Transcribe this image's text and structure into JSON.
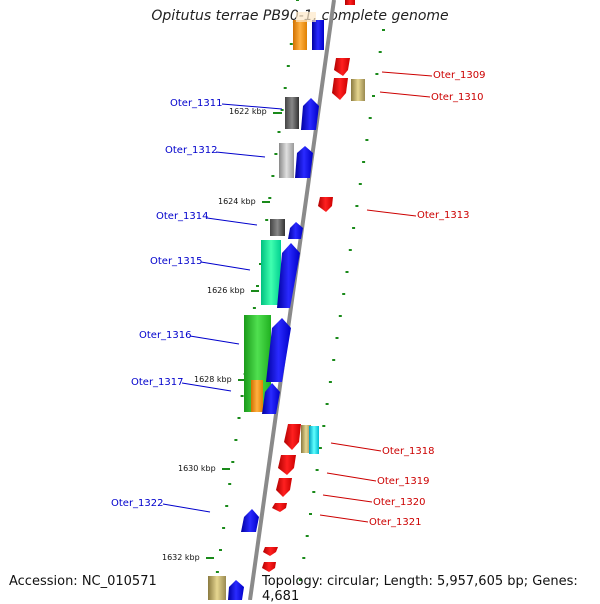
{
  "title": "Opitutus terrae PB90-1, complete genome",
  "footer": {
    "accession": "Accession: NC_010571",
    "topology": "Topology: circular; Length: 5,957,605 bp; Genes: 4,681"
  },
  "colors": {
    "backbone": "#8c8c8c",
    "forward_label": "#0000cc",
    "reverse_label": "#cc0000",
    "tick": "#1a8a1a",
    "forward_gene": "#0000ff",
    "reverse_gene": "#ff0000"
  },
  "scale_labels": [
    "1622 kbp",
    "1624 kbp",
    "1626 kbp",
    "1628 kbp",
    "1630 kbp",
    "1632 kbp"
  ],
  "forward_genes": [
    "Oter_1311",
    "Oter_1312",
    "Oter_1314",
    "Oter_1315",
    "Oter_1316",
    "Oter_1317",
    "Oter_1322"
  ],
  "reverse_genes": [
    "Oter_1309",
    "Oter_1310",
    "Oter_1313",
    "Oter_1318",
    "Oter_1319",
    "Oter_1320",
    "Oter_1321"
  ]
}
